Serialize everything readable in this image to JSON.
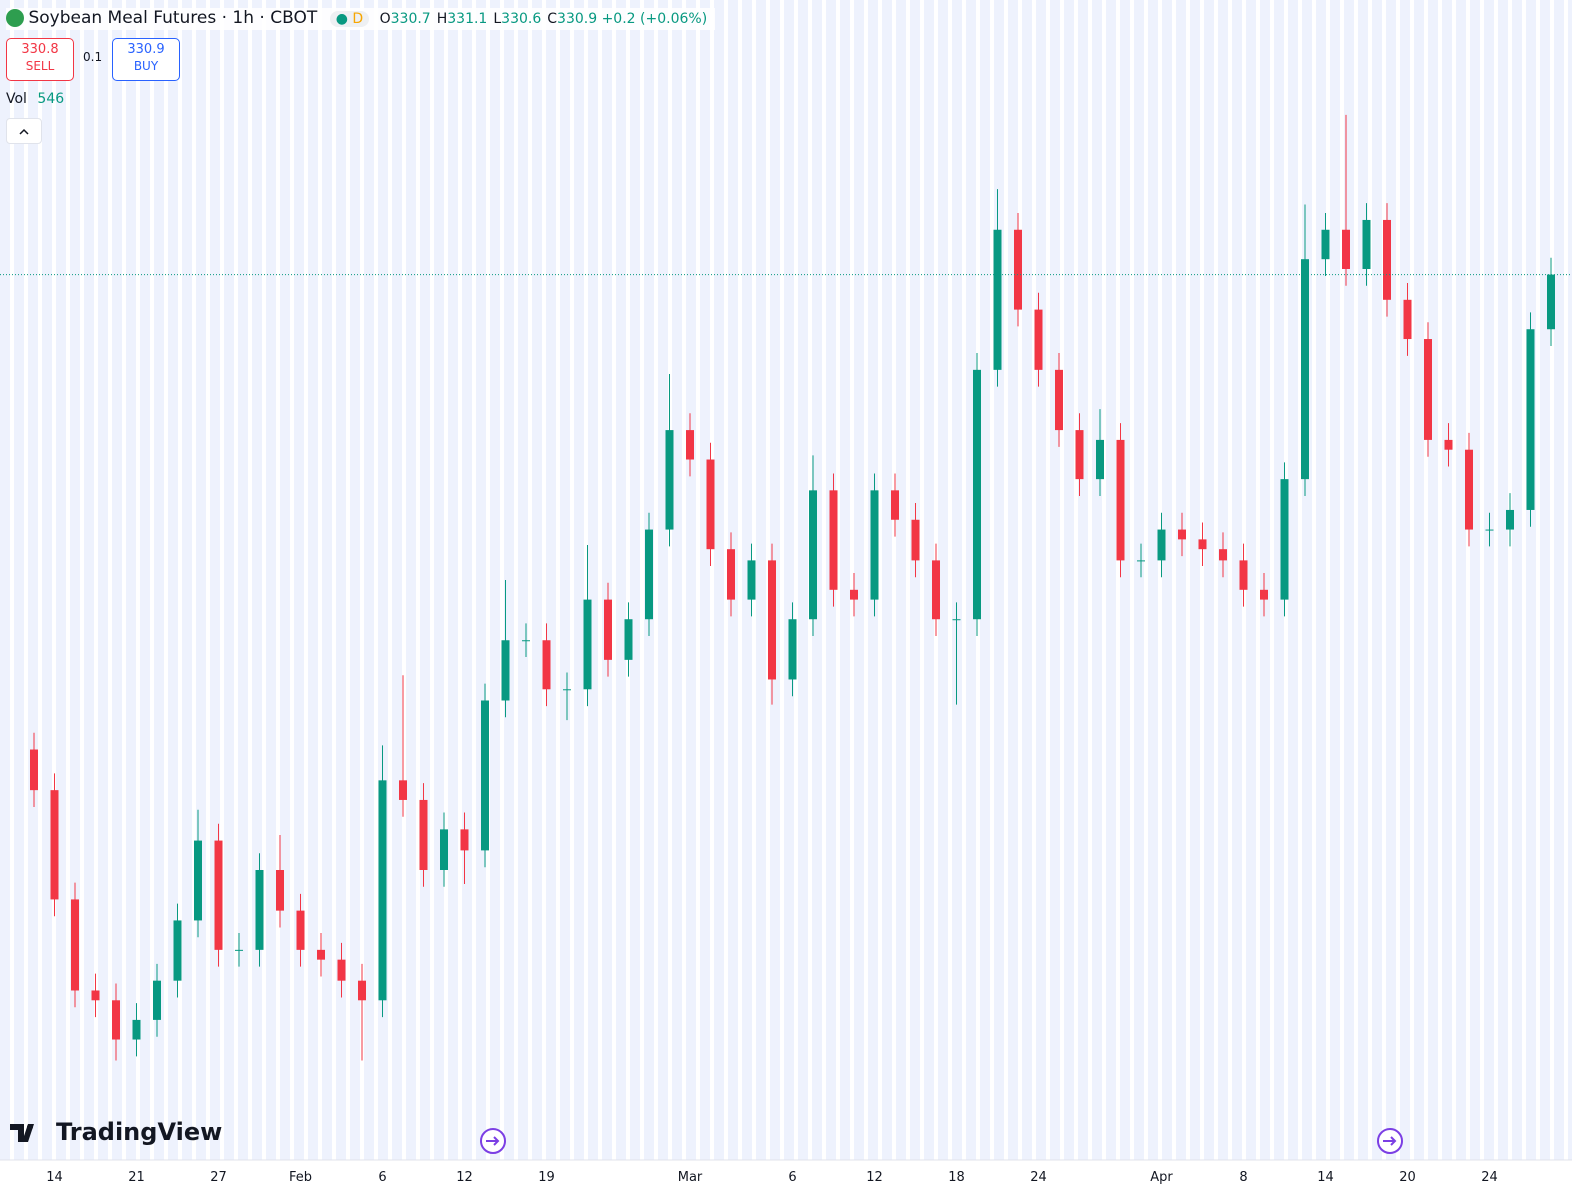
{
  "header": {
    "title": "Soybean Meal Futures · 1h · CBOT",
    "flag": "D",
    "ohlc": [
      {
        "label": "O",
        "value": 330.7
      },
      {
        "label": "H",
        "value": 331.1
      },
      {
        "label": "L",
        "value": 330.6
      },
      {
        "label": "C",
        "value": 330.9
      }
    ],
    "change": "+0.2 (+0.06%)"
  },
  "trade": {
    "sell_price": 330.8,
    "sell_label": "SELL",
    "spread": 0.1,
    "buy_price": 330.9,
    "buy_label": "BUY"
  },
  "volume": {
    "label": "Vol",
    "value": 546
  },
  "brand": "TradingView",
  "chart_data": {
    "type": "candlestick",
    "categories": [
      null,
      "14",
      null,
      null,
      null,
      "21",
      null,
      null,
      null,
      "27",
      null,
      null,
      null,
      "Feb",
      null,
      null,
      null,
      "6",
      null,
      null,
      null,
      "12",
      null,
      null,
      null,
      "19",
      null,
      null,
      null,
      null,
      null,
      null,
      "Mar",
      null,
      null,
      null,
      null,
      "6",
      null,
      null,
      null,
      "12",
      null,
      null,
      null,
      "18",
      null,
      null,
      null,
      "24",
      null,
      null,
      null,
      null,
      null,
      "Apr",
      null,
      null,
      null,
      "8",
      null,
      null,
      null,
      "14",
      null,
      null,
      null,
      "20",
      null,
      null,
      null,
      "24",
      null,
      null,
      null
    ],
    "open": [
      297.0,
      294.1,
      286.3,
      279.8,
      279.1,
      276.3,
      277.7,
      280.5,
      284.8,
      290.5,
      282.7,
      282.7,
      288.4,
      285.5,
      282.7,
      282.0,
      280.5,
      279.1,
      294.8,
      293.4,
      288.4,
      291.3,
      289.8,
      300.5,
      304.8,
      304.8,
      301.3,
      301.3,
      307.7,
      303.4,
      306.3,
      312.7,
      319.8,
      317.7,
      311.3,
      307.7,
      310.5,
      302.0,
      306.3,
      315.5,
      308.4,
      307.7,
      315.5,
      313.4,
      310.5,
      306.3,
      306.3,
      324.1,
      334.1,
      328.4,
      324.1,
      319.8,
      316.3,
      319.1,
      310.5,
      310.5,
      312.7,
      312.0,
      311.3,
      310.5,
      308.4,
      307.7,
      316.3,
      332.0,
      334.1,
      331.3,
      334.8,
      329.1,
      326.3,
      319.1,
      318.4,
      312.7,
      312.7,
      314.1,
      327.0
    ],
    "high": [
      298.2,
      295.3,
      287.5,
      281.0,
      280.3,
      278.9,
      281.7,
      286.0,
      292.7,
      291.7,
      283.9,
      289.6,
      290.9,
      286.7,
      283.9,
      283.2,
      281.7,
      297.3,
      302.3,
      294.6,
      292.5,
      292.5,
      301.7,
      309.1,
      306.0,
      306.0,
      302.5,
      311.6,
      308.9,
      307.5,
      313.9,
      323.8,
      321.0,
      318.9,
      312.5,
      311.7,
      311.7,
      307.5,
      318.0,
      316.7,
      309.6,
      316.7,
      316.7,
      314.6,
      311.7,
      307.5,
      325.3,
      337.0,
      335.3,
      329.6,
      325.3,
      321.0,
      321.3,
      320.3,
      311.7,
      313.9,
      313.9,
      313.2,
      312.5,
      311.7,
      309.6,
      317.5,
      335.9,
      335.3,
      342.3,
      336.0,
      336.0,
      330.3,
      327.5,
      320.3,
      319.6,
      313.9,
      315.3,
      328.2,
      332.1
    ],
    "low": [
      292.9,
      285.1,
      278.6,
      277.9,
      274.8,
      275.1,
      276.5,
      279.3,
      283.6,
      281.5,
      281.5,
      281.5,
      284.3,
      281.5,
      280.8,
      279.3,
      274.8,
      277.9,
      292.2,
      287.2,
      287.2,
      287.4,
      288.6,
      299.3,
      303.6,
      300.1,
      299.1,
      300.1,
      302.2,
      302.2,
      305.1,
      311.5,
      316.5,
      310.1,
      306.5,
      306.5,
      300.2,
      300.8,
      305.1,
      307.2,
      306.5,
      306.5,
      312.2,
      309.3,
      305.1,
      300.2,
      305.1,
      322.9,
      327.2,
      322.9,
      318.6,
      315.1,
      315.1,
      309.3,
      309.3,
      309.3,
      310.8,
      310.1,
      309.3,
      307.2,
      306.5,
      306.5,
      315.1,
      330.8,
      330.1,
      330.1,
      327.9,
      325.1,
      317.9,
      317.2,
      311.5,
      311.5,
      311.5,
      312.9,
      325.8
    ],
    "close": [
      294.1,
      286.3,
      279.8,
      279.1,
      276.3,
      277.7,
      280.5,
      284.8,
      290.5,
      282.7,
      282.7,
      288.4,
      285.5,
      282.7,
      282.0,
      280.5,
      279.1,
      294.8,
      293.4,
      288.4,
      291.3,
      289.8,
      300.5,
      304.8,
      304.8,
      301.3,
      301.3,
      307.7,
      303.4,
      306.3,
      312.7,
      319.8,
      317.7,
      311.3,
      307.7,
      310.5,
      302.0,
      306.3,
      315.5,
      308.4,
      307.7,
      315.5,
      313.4,
      310.5,
      306.3,
      306.3,
      324.1,
      334.1,
      328.4,
      324.1,
      319.8,
      316.3,
      319.1,
      310.5,
      310.5,
      312.7,
      312.0,
      311.3,
      310.5,
      308.4,
      307.7,
      316.3,
      332.0,
      334.1,
      331.3,
      334.8,
      329.1,
      326.3,
      319.1,
      318.4,
      312.7,
      312.7,
      314.1,
      327.0,
      330.9
    ],
    "ylim": [
      267.7,
      350.5
    ],
    "up_color": "#089981",
    "down_color": "#f23645",
    "last_price_line": true
  }
}
